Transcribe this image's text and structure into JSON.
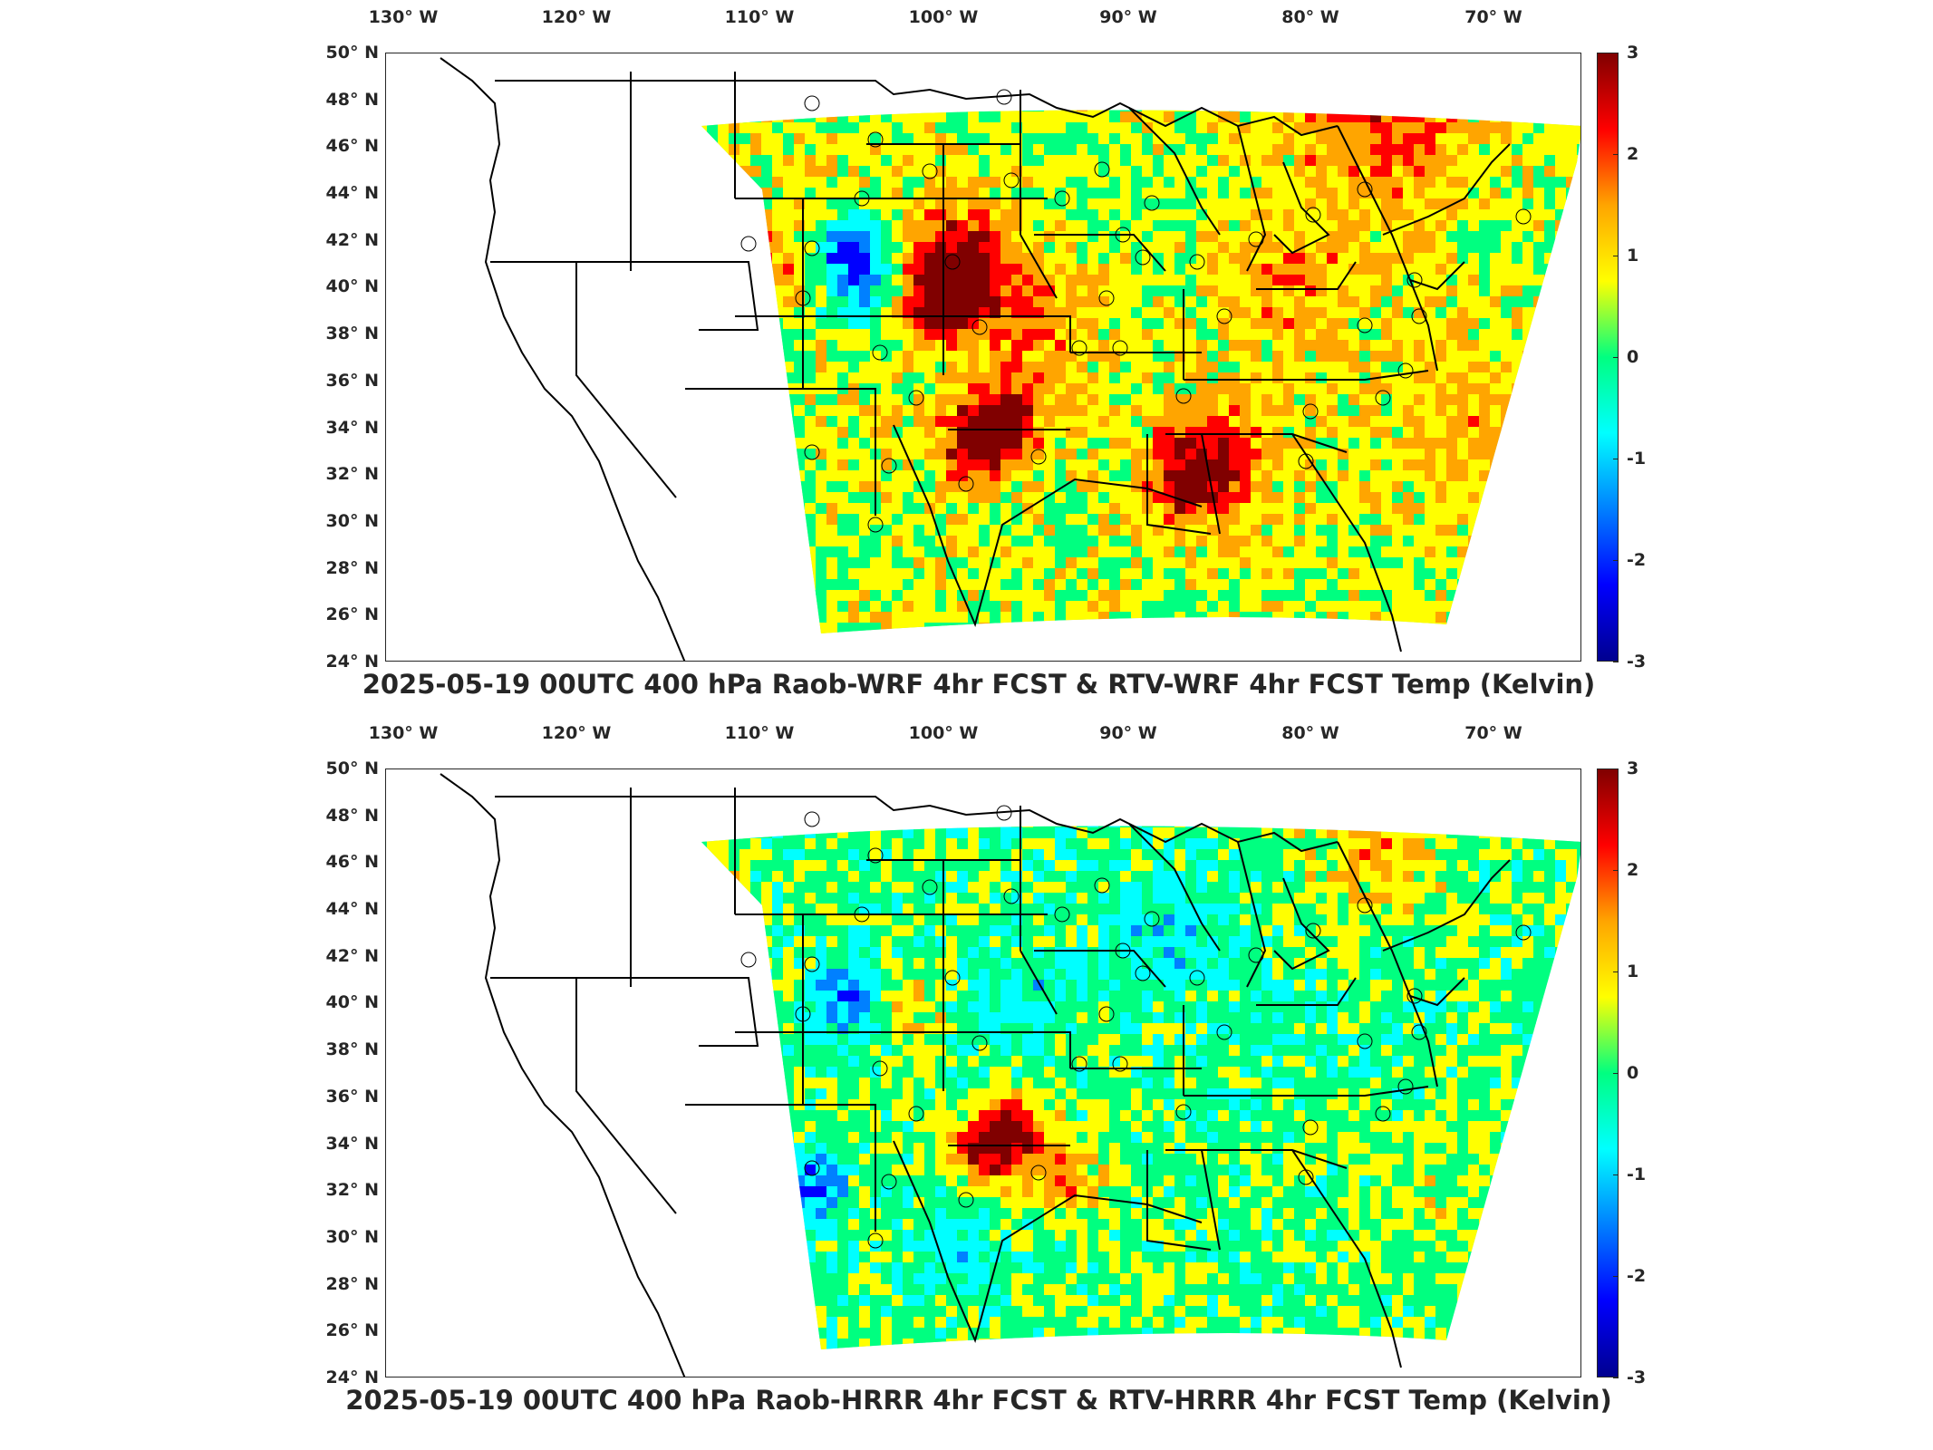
{
  "panels": [
    {
      "title": "2025-05-19 00UTC 400 hPa Raob-WRF 4hr FCST & RTV-WRF 4hr FCST Temp (Kelvin)",
      "variant": "wrf"
    },
    {
      "title": "2025-05-19 00UTC 400 hPa Raob-HRRR 4hr FCST & RTV-HRRR 4hr FCST Temp (Kelvin)",
      "variant": "hrrr"
    }
  ],
  "lon_ticks": [
    {
      "value": -130,
      "label": "130° W"
    },
    {
      "value": -120,
      "label": "120° W"
    },
    {
      "value": -110,
      "label": "110° W"
    },
    {
      "value": -100,
      "label": "100° W"
    },
    {
      "value": -90,
      "label": "90° W"
    },
    {
      "value": -80,
      "label": "80° W"
    },
    {
      "value": -70,
      "label": "70° W"
    }
  ],
  "lat_ticks": [
    {
      "value": 50,
      "label": "50° N"
    },
    {
      "value": 48,
      "label": "48° N"
    },
    {
      "value": 46,
      "label": "46° N"
    },
    {
      "value": 44,
      "label": "44° N"
    },
    {
      "value": 42,
      "label": "42° N"
    },
    {
      "value": 40,
      "label": "40° N"
    },
    {
      "value": 38,
      "label": "38° N"
    },
    {
      "value": 36,
      "label": "36° N"
    },
    {
      "value": 34,
      "label": "34° N"
    },
    {
      "value": 32,
      "label": "32° N"
    },
    {
      "value": 30,
      "label": "30° N"
    },
    {
      "value": 28,
      "label": "28° N"
    },
    {
      "value": 26,
      "label": "26° N"
    },
    {
      "value": 24,
      "label": "24° N"
    }
  ],
  "colorbar": {
    "min": -3,
    "max": 3,
    "ticks": [
      "3",
      "2",
      "1",
      "0",
      "-1",
      "-2",
      "-3"
    ],
    "colors": [
      "#800000",
      "#ff0000",
      "#ffa500",
      "#ffff00",
      "#00ff80",
      "#00ffff",
      "#0080ff",
      "#0000ff",
      "#00008f"
    ]
  },
  "colors": {
    "border": "#000000",
    "frame": "#262626"
  }
}
